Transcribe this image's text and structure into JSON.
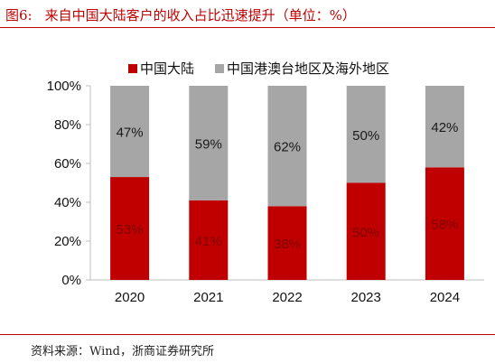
{
  "title": {
    "prefix": "图6:",
    "text": "来自中国大陆客户的收入占比迅速提升（单位：%）"
  },
  "source": "资料来源：Wind，浙商证券研究所",
  "colors": {
    "mainland": "#c00000",
    "overseas": "#a6a6a6",
    "title": "#c00000"
  },
  "chart_data": {
    "type": "bar",
    "stacked": true,
    "categories": [
      "2020",
      "2021",
      "2022",
      "2023",
      "2024"
    ],
    "series": [
      {
        "name": "中国大陆",
        "values": [
          53,
          41,
          38,
          50,
          58
        ],
        "labels": [
          "53%",
          "41%",
          "38%",
          "50%",
          "58%"
        ]
      },
      {
        "name": "中国港澳台地区及海外地区",
        "values": [
          47,
          59,
          62,
          50,
          42
        ],
        "labels": [
          "47%",
          "59%",
          "62%",
          "50%",
          "42%"
        ]
      }
    ],
    "yticks": [
      "0%",
      "20%",
      "40%",
      "60%",
      "80%",
      "100%"
    ],
    "ylim": [
      0,
      100
    ],
    "legend": "top",
    "grid": false
  }
}
